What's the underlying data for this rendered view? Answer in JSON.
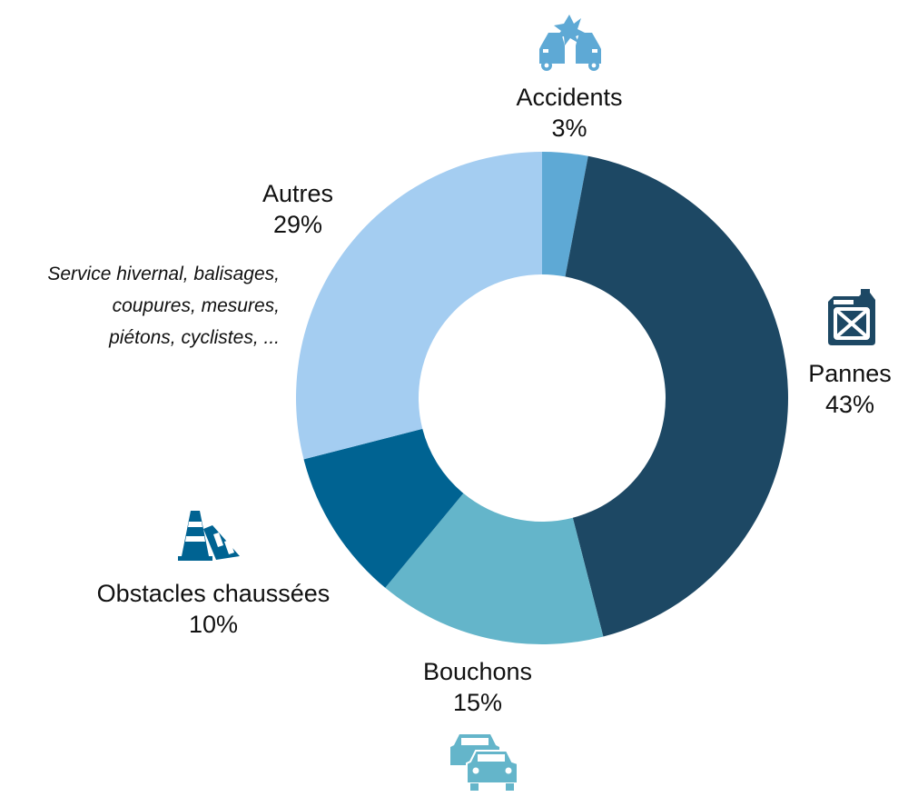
{
  "chart_data": {
    "type": "pie",
    "variant": "donut",
    "title": "",
    "start": "top",
    "direction": "clockwise",
    "slices": [
      {
        "label": "Accidents",
        "value": 3,
        "value_label": "3%",
        "color": "#5ea9d5",
        "icon": "car-crash-icon"
      },
      {
        "label": "Pannes",
        "value": 43,
        "value_label": "43%",
        "color": "#1d4864",
        "icon": "fuel-canister-icon"
      },
      {
        "label": "Bouchons",
        "value": 15,
        "value_label": "15%",
        "color": "#64b5ca",
        "icon": "traffic-jam-icon"
      },
      {
        "label": "Obstacles chaussées",
        "value": 10,
        "value_label": "10%",
        "color": "#006392",
        "icon": "traffic-cone-icon"
      },
      {
        "label": "Autres",
        "value": 29,
        "value_label": "29%",
        "color": "#a4cdf1",
        "icon": ""
      }
    ],
    "annotation": [
      "Service hivernal, balisages,",
      "coupures, mesures,",
      "piétons, cyclistes, ..."
    ]
  }
}
